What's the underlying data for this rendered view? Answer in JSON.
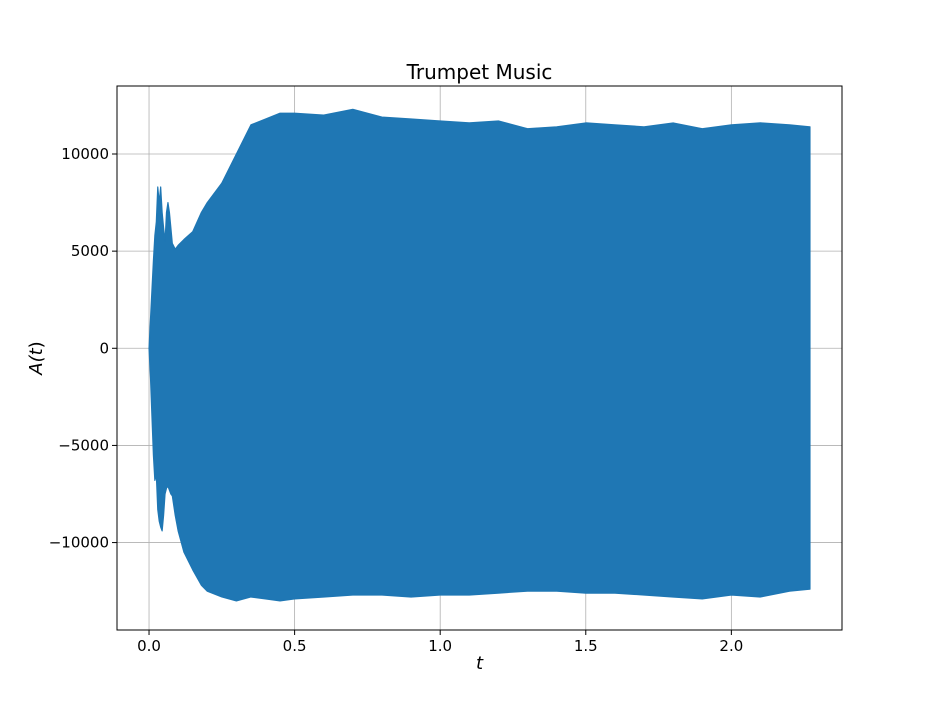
{
  "chart_data": {
    "type": "area",
    "title": "Trumpet Music",
    "xlabel": "t",
    "ylabel_text": "A(",
    "ylabel_var": "t",
    "ylabel_close": ")",
    "xlim": [
      -0.11,
      2.38
    ],
    "ylim": [
      -14500,
      13500
    ],
    "x_ticks": [
      0.0,
      0.5,
      1.0,
      1.5,
      2.0
    ],
    "x_tick_labels": [
      "0.0",
      "0.5",
      "1.0",
      "1.5",
      "2.0"
    ],
    "y_ticks": [
      10000,
      5000,
      0,
      -5000,
      -10000
    ],
    "y_tick_labels": [
      "10000",
      "5000",
      "0",
      "−5000",
      "−10000"
    ],
    "grid": true,
    "series": [
      {
        "color": "#1f77b4",
        "envelope": {
          "x": [
            0.0,
            0.005,
            0.01,
            0.015,
            0.02,
            0.025,
            0.03,
            0.035,
            0.04,
            0.045,
            0.05,
            0.055,
            0.06,
            0.065,
            0.07,
            0.075,
            0.08,
            0.09,
            0.1,
            0.12,
            0.15,
            0.18,
            0.2,
            0.25,
            0.3,
            0.35,
            0.4,
            0.45,
            0.5,
            0.6,
            0.7,
            0.8,
            0.9,
            1.0,
            1.1,
            1.2,
            1.3,
            1.4,
            1.5,
            1.6,
            1.7,
            1.8,
            1.9,
            2.0,
            2.1,
            2.2,
            2.27
          ],
          "upper": [
            0,
            1500,
            3000,
            4500,
            5800,
            6500,
            8300,
            7500,
            8300,
            7000,
            6200,
            5500,
            7000,
            7500,
            7000,
            6200,
            5400,
            5100,
            5300,
            5600,
            6000,
            7000,
            7500,
            8500,
            10000,
            11500,
            11800,
            12100,
            12100,
            12000,
            12300,
            11900,
            11800,
            11700,
            11600,
            11700,
            11300,
            11400,
            11600,
            11500,
            11400,
            11600,
            11300,
            11500,
            11600,
            11500,
            11400
          ],
          "lower": [
            0,
            -1500,
            -3500,
            -5500,
            -6800,
            -6500,
            -8300,
            -8900,
            -9200,
            -9400,
            -8600,
            -7500,
            -7200,
            -7100,
            -7300,
            -7500,
            -7600,
            -8600,
            -9400,
            -10500,
            -11400,
            -12200,
            -12500,
            -12800,
            -13000,
            -12800,
            -12900,
            -13000,
            -12900,
            -12800,
            -12700,
            -12700,
            -12800,
            -12700,
            -12700,
            -12600,
            -12500,
            -12500,
            -12600,
            -12600,
            -12700,
            -12800,
            -12900,
            -12700,
            -12800,
            -12500,
            -12400
          ]
        }
      }
    ]
  }
}
